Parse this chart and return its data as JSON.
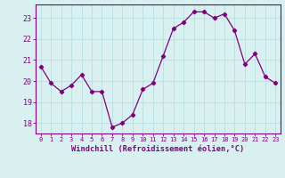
{
  "x": [
    0,
    1,
    2,
    3,
    4,
    5,
    6,
    7,
    8,
    9,
    10,
    11,
    12,
    13,
    14,
    15,
    16,
    17,
    18,
    19,
    20,
    21,
    22,
    23
  ],
  "y": [
    20.7,
    19.9,
    19.5,
    19.8,
    20.3,
    19.5,
    19.5,
    17.8,
    18.0,
    18.4,
    19.6,
    19.9,
    21.2,
    22.5,
    22.8,
    23.3,
    23.3,
    23.0,
    23.2,
    22.4,
    20.8,
    21.3,
    20.2,
    19.9
  ],
  "line_color": "#800080",
  "marker": "D",
  "marker_size": 2.2,
  "xlabel": "Windchill (Refroidissement éolien,°C)",
  "ylabel_ticks": [
    18,
    19,
    20,
    21,
    22,
    23
  ],
  "xlim": [
    -0.5,
    23.5
  ],
  "ylim": [
    17.5,
    23.65
  ],
  "bg_color": "#d8f0f0",
  "grid_color": "#b8dede",
  "tick_color": "#800080",
  "label_color": "#800080",
  "font_family": "monospace",
  "xtick_fontsize": 5.0,
  "ytick_fontsize": 6.0,
  "xlabel_fontsize": 6.2
}
